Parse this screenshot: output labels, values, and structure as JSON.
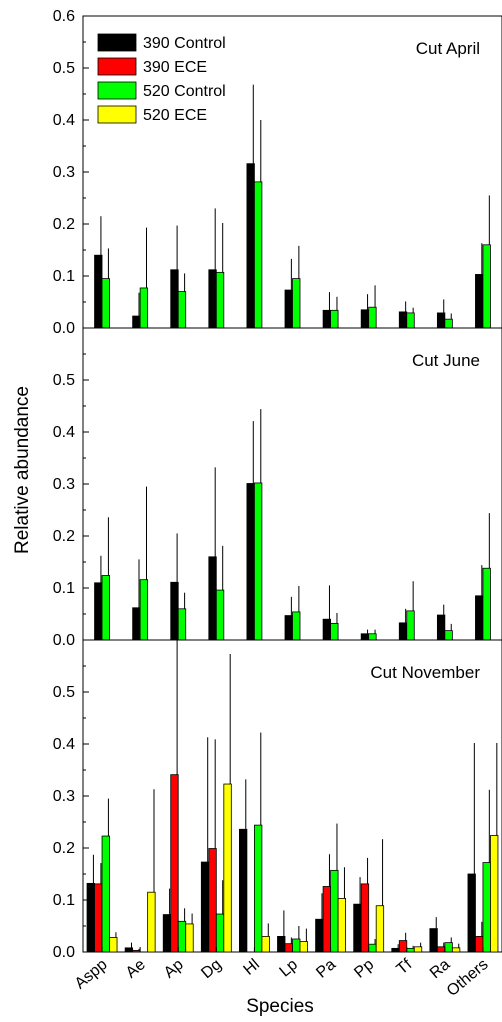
{
  "chart_data": {
    "type": "bar",
    "xlabel": "Species",
    "ylabel": "Relative abundance",
    "ylim": [
      0,
      0.6
    ],
    "yticks": [
      "0.0",
      "0.1",
      "0.2",
      "0.3",
      "0.4",
      "0.5",
      "0.6"
    ],
    "categories": [
      "Aspp",
      "Ae",
      "Ap",
      "Dg",
      "Hl",
      "Lp",
      "Pa",
      "Pp",
      "Tf",
      "Ra",
      "Others"
    ],
    "legend": [
      {
        "name": "390 Control",
        "color": "#000000"
      },
      {
        "name": "390 ECE",
        "color": "#ff0000"
      },
      {
        "name": "520 Control",
        "color": "#00ff00"
      },
      {
        "name": "520 ECE",
        "color": "#ffff00"
      }
    ],
    "panels": [
      {
        "title": "Cut April",
        "series": [
          {
            "name": "390 Control",
            "color": "#000000",
            "values": [
              0.14,
              0.023,
              0.112,
              0.112,
              0.316,
              0.073,
              0.034,
              0.035,
              0.031,
              0.029,
              0.103
            ],
            "errors": [
              0.075,
              0.045,
              0.085,
              0.118,
              0.152,
              0.06,
              0.035,
              0.03,
              0.02,
              0.026,
              0.06
            ]
          },
          {
            "name": "520 Control",
            "color": "#00ff00",
            "values": [
              0.095,
              0.077,
              0.07,
              0.107,
              0.281,
              0.095,
              0.034,
              0.04,
              0.029,
              0.017,
              0.16
            ],
            "errors": [
              0.058,
              0.116,
              0.035,
              0.095,
              0.119,
              0.063,
              0.026,
              0.042,
              0.01,
              0.011,
              0.095
            ]
          }
        ]
      },
      {
        "title": "Cut June",
        "series": [
          {
            "name": "390 Control",
            "color": "#000000",
            "values": [
              0.11,
              0.062,
              0.111,
              0.16,
              0.301,
              0.047,
              0.04,
              0.012,
              0.033,
              0.048,
              0.085
            ],
            "errors": [
              0.052,
              0.093,
              0.094,
              0.172,
              0.12,
              0.036,
              0.065,
              0.008,
              0.027,
              0.02,
              0.059
            ]
          },
          {
            "name": "520 Control",
            "color": "#00ff00",
            "values": [
              0.124,
              0.116,
              0.06,
              0.096,
              0.302,
              0.054,
              0.032,
              0.012,
              0.056,
              0.018,
              0.138
            ],
            "errors": [
              0.112,
              0.179,
              0.031,
              0.085,
              0.142,
              0.05,
              0.02,
              0.008,
              0.057,
              0.013,
              0.106
            ]
          }
        ]
      },
      {
        "title": "Cut November",
        "series": [
          {
            "name": "390 Control",
            "color": "#000000",
            "values": [
              0.132,
              0.008,
              0.072,
              0.173,
              0.236,
              0.03,
              0.063,
              0.092,
              0.007,
              0.045,
              0.15
            ],
            "errors": [
              0.055,
              0.01,
              0.05,
              0.24,
              0.096,
              0.05,
              0.05,
              0.052,
              0.008,
              0.022,
              0.252
            ]
          },
          {
            "name": "390 ECE",
            "color": "#ff0000",
            "values": [
              0.131,
              0.003,
              0.341,
              0.199,
              0.0,
              0.016,
              0.126,
              0.131,
              0.022,
              0.01,
              0.03
            ],
            "errors": [
              0.04,
              0.003,
              0.27,
              0.21,
              0.0,
              0.012,
              0.062,
              0.05,
              0.015,
              0.008,
              0.028
            ]
          },
          {
            "name": "520 Control",
            "color": "#00ff00",
            "values": [
              0.223,
              0.0,
              0.059,
              0.073,
              0.244,
              0.025,
              0.157,
              0.015,
              0.007,
              0.018,
              0.172
            ],
            "errors": [
              0.072,
              0.0,
              0.025,
              0.065,
              0.178,
              0.025,
              0.09,
              0.01,
              0.005,
              0.01,
              0.14
            ]
          },
          {
            "name": "520 ECE",
            "color": "#ffff00",
            "values": [
              0.028,
              0.115,
              0.054,
              0.323,
              0.03,
              0.02,
              0.103,
              0.089,
              0.01,
              0.008,
              0.224
            ],
            "errors": [
              0.01,
              0.198,
              0.02,
              0.25,
              0.025,
              0.025,
              0.06,
              0.128,
              0.008,
              0.008,
              0.178
            ]
          }
        ]
      }
    ]
  }
}
